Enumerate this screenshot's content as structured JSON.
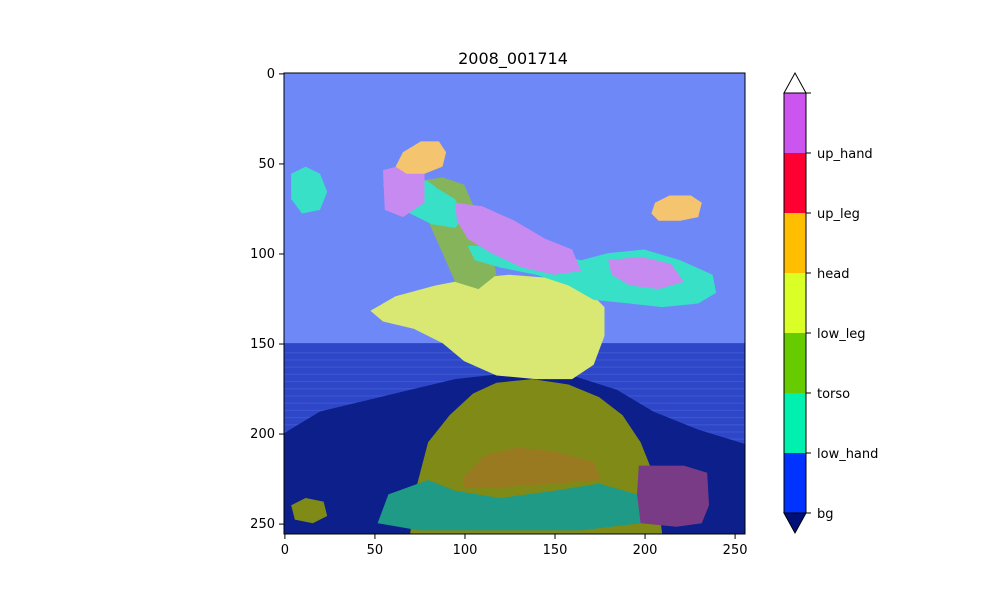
{
  "chart_data": {
    "type": "heatmap",
    "title": "2008_001714",
    "xlim": [
      0,
      255
    ],
    "ylim": [
      255,
      0
    ],
    "x_ticks": [
      "0",
      "50",
      "100",
      "150",
      "200",
      "250"
    ],
    "y_ticks": [
      "0",
      "50",
      "100",
      "150",
      "200",
      "250"
    ],
    "colorbar": {
      "labels": [
        "bg",
        "low_hand",
        "torso",
        "low_leg",
        "head",
        "up_leg",
        "up_hand"
      ],
      "band_colors": [
        "#0033ff",
        "#00f0b0",
        "#66cc00",
        "#d9ff26",
        "#ffbf00",
        "#ff0033",
        "#cc55f0"
      ],
      "under_color": "#00107a",
      "over_color": "#ffffff"
    },
    "overlay_colors": {
      "sky": "#6f88f8",
      "sea": "#2e47c8",
      "rock": "#0c1f8a",
      "yellow": "#d8e873",
      "olive": "#808a17",
      "green": "#86b45a",
      "cyan": "#38e0c8",
      "teal": "#1f9a86",
      "purple": "#c78af0",
      "orange": "#f5c46e",
      "darkpurple": "#7a3b86",
      "brown": "#9a7a20"
    }
  }
}
